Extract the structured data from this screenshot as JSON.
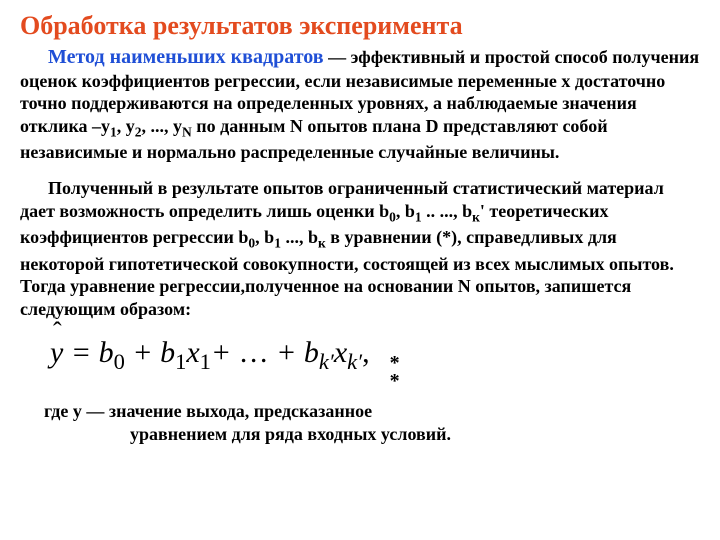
{
  "colors": {
    "title": "#e34b1f",
    "method": "#1f4fd6",
    "body_text": "#000000",
    "background": "#ffffff"
  },
  "title": "Обработка результатов эксперимента",
  "method_label": "Метод наименьших квадратов",
  "para1_after_method": " — эффективный и простой способ получения оценок коэффициентов регрессии,  если независимые переменные х достаточно точно поддерживаются на определенных уровнях, а наблюдаемые значения отклика –у",
  "para1_y1sub": "1",
  "para1_mid1": ", у",
  "para1_y2sub": "2",
  "para1_mid2": ", ..., у",
  "para1_yNsub": "N",
  "para1_tail": " по данным N опытов плана D представляют собой независимые и нормально распределенные случайные величины.",
  "para2_lead": "Полученный в результате опытов ограниченный статистический материал дает возможность определить лишь оценки b",
  "p2_s0": "0",
  "p2_m1": ", b",
  "p2_s1": "1",
  "p2_m2": " .. ..., b",
  "p2_sk": "к",
  "p2_m3": "' теоретических коэффициентов регрессии b",
  "p2_s0b": "0",
  "p2_m4": ", b",
  "p2_s1b": "1",
  "p2_m5": " ..., b",
  "p2_skb": "к",
  "p2_tail": " в уравнении (*), справедливых для некоторой гипотетической совокупности, состоящей из всех мыслимых опытов. Тогда уравнение регрессии,полученное на основании N опытов, запишется следующим образом:",
  "formula": {
    "lhs_sym": "y",
    "eq": " = ",
    "b0": "b",
    "sub0": "0",
    "plus1": " + ",
    "b1": "b",
    "sub1": "1",
    "x1": "x",
    "xsub1": "1",
    "plus2": "+ ",
    "dots": " … ",
    "plus3": "+ ",
    "bk": "b",
    "subk": "k′",
    "xk": "x",
    "xsubk": "k′",
    "comma": ","
  },
  "marker": "*\n*",
  "where_l1": "где у — значение выхода, предсказанное",
  "where_l2": "уравнением для ряда входных условий."
}
